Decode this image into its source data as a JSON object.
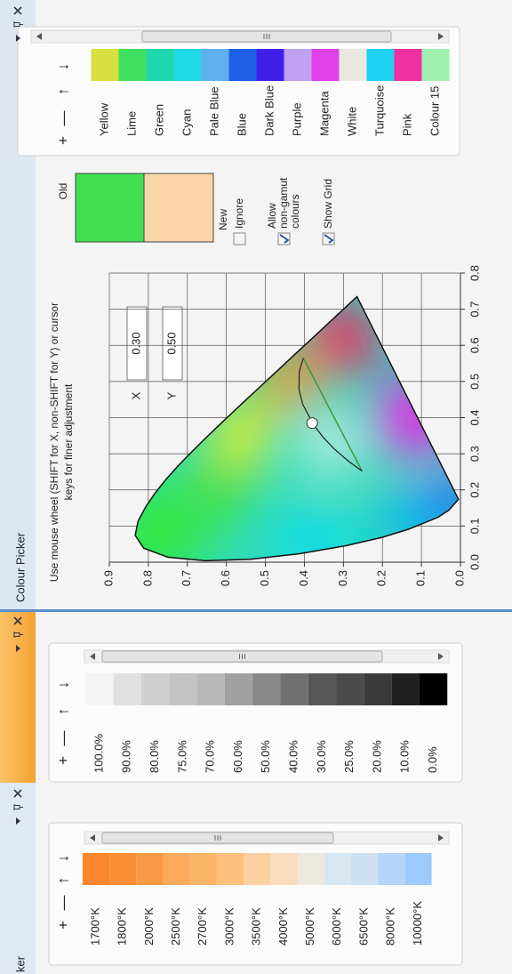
{
  "toolbar": [
    "+",
    "—",
    "↑",
    "↓"
  ],
  "panels": {
    "temperature": {
      "title": "ker",
      "items": [
        {
          "label": "1700°K",
          "color": "#fb872c"
        },
        {
          "label": "1800°K",
          "color": "#fb8f36"
        },
        {
          "label": "2000°K",
          "color": "#fb9a44"
        },
        {
          "label": "2500°K",
          "color": "#fcaa5c"
        },
        {
          "label": "2700°K",
          "color": "#fcb468"
        },
        {
          "label": "3000°K",
          "color": "#fcbf7c"
        },
        {
          "label": "3500°K",
          "color": "#fcd09f"
        },
        {
          "label": "4000°K",
          "color": "#f8dcbc"
        },
        {
          "label": "5000°K",
          "color": "#ebe8e0"
        },
        {
          "label": "6000°K",
          "color": "#d8e6f0"
        },
        {
          "label": "6500°K",
          "color": "#cde0f2"
        },
        {
          "label": "8000°K",
          "color": "#b4d4f8"
        },
        {
          "label": "10000°K",
          "color": "#9ccafc"
        }
      ]
    },
    "grayscale": {
      "items": [
        {
          "label": "100.0%",
          "color": "#f4f4f4"
        },
        {
          "label": "90.0%",
          "color": "#e0e0e0"
        },
        {
          "label": "80.0%",
          "color": "#cfcfcf"
        },
        {
          "label": "75.0%",
          "color": "#c4c4c4"
        },
        {
          "label": "70.0%",
          "color": "#b8b8b8"
        },
        {
          "label": "60.0%",
          "color": "#a0a0a0"
        },
        {
          "label": "50.0%",
          "color": "#888888"
        },
        {
          "label": "40.0%",
          "color": "#707070"
        },
        {
          "label": "30.0%",
          "color": "#585858"
        },
        {
          "label": "25.0%",
          "color": "#4a4a4a"
        },
        {
          "label": "20.0%",
          "color": "#3a3a3a"
        },
        {
          "label": "10.0%",
          "color": "#202020"
        },
        {
          "label": "0.0%",
          "color": "#000000"
        }
      ]
    },
    "picker": {
      "title": "Colour Picker",
      "instructions": [
        "Use mouse wheel (SHIFT for X, non-SHIFT for Y) or cursor",
        "keys for finer adjustment"
      ],
      "inputs": [
        {
          "label": "X",
          "value": "0.30"
        },
        {
          "label": "Y",
          "value": "0.50"
        }
      ],
      "old_label": "Old",
      "new_label": "New",
      "old_color": "#40e050",
      "new_color": "#fad5a8",
      "options": [
        {
          "lines": [
            "Ignore"
          ],
          "checked": false
        },
        {
          "lines": [
            "Allow",
            "non-gamut",
            "colours"
          ],
          "checked": true
        },
        {
          "lines": [
            "Show Grid"
          ],
          "checked": true
        }
      ],
      "named": [
        {
          "label": "Yellow",
          "color": "#d8e040"
        },
        {
          "label": "Lime",
          "color": "#40e060"
        },
        {
          "label": "Green",
          "color": "#20d8b0"
        },
        {
          "label": "Cyan",
          "color": "#20d8e8"
        },
        {
          "label": "Pale Blue",
          "color": "#60b0f0"
        },
        {
          "label": "Blue",
          "color": "#2060e8"
        },
        {
          "label": "Dark Blue",
          "color": "#4020e8"
        },
        {
          "label": "Purple",
          "color": "#c0a0f0"
        },
        {
          "label": "Magenta",
          "color": "#e040e8"
        },
        {
          "label": "White",
          "color": "#e8e8e0"
        },
        {
          "label": "Turquoise",
          "color": "#20d0f0"
        },
        {
          "label": "Pink",
          "color": "#f030a0"
        },
        {
          "label": "Colour 15",
          "color": "#a0f0b0"
        }
      ]
    }
  },
  "chart_data": {
    "type": "cie",
    "xlim": [
      0,
      0.8
    ],
    "ylim": [
      0,
      0.9
    ],
    "xticks": [
      {
        "value": 0,
        "label": "0.0"
      },
      0.1,
      0.2,
      0.3,
      0.4,
      0.5,
      0.6,
      0.7,
      0.8
    ],
    "yticks": [
      {
        "value": 0,
        "label": "0.0"
      },
      0.1,
      0.2,
      0.3,
      0.4,
      0.5,
      0.6,
      0.7,
      0.8,
      0.9
    ],
    "grid": true,
    "locus": {
      "x": [
        0.1741,
        0.144,
        0.1241,
        0.0913,
        0.0687,
        0.0454,
        0.0235,
        0.0082,
        0.0039,
        0.0139,
        0.0389,
        0.0743,
        0.1142,
        0.1547,
        0.1929,
        0.2296,
        0.2658,
        0.3016,
        0.3373,
        0.3731,
        0.4087,
        0.4441,
        0.4788,
        0.5125,
        0.5448,
        0.5752,
        0.6029,
        0.627,
        0.6482,
        0.6658,
        0.6801,
        0.7347
      ],
      "y": [
        0.005,
        0.0297,
        0.0578,
        0.1327,
        0.2007,
        0.295,
        0.4127,
        0.5384,
        0.6548,
        0.7502,
        0.812,
        0.8338,
        0.8262,
        0.8059,
        0.7816,
        0.7543,
        0.7243,
        0.6923,
        0.6589,
        0.6245,
        0.5896,
        0.5547,
        0.5202,
        0.4866,
        0.4544,
        0.4242,
        0.3965,
        0.3725,
        0.3514,
        0.334,
        0.3197,
        0.2653
      ]
    },
    "planckian": {
      "x": [
        0.5646,
        0.5267,
        0.477,
        0.4369,
        0.3805,
        0.3451,
        0.3135,
        0.2807,
        0.252
      ],
      "y": [
        0.4029,
        0.4133,
        0.4137,
        0.4041,
        0.3768,
        0.3516,
        0.3237,
        0.2884,
        0.2522
      ]
    },
    "isotherm": {
      "x": [
        0.5646,
        0.252
      ],
      "y": [
        0.4029,
        0.2522
      ]
    },
    "selected": {
      "x": 0.385,
      "y": 0.38
    }
  }
}
